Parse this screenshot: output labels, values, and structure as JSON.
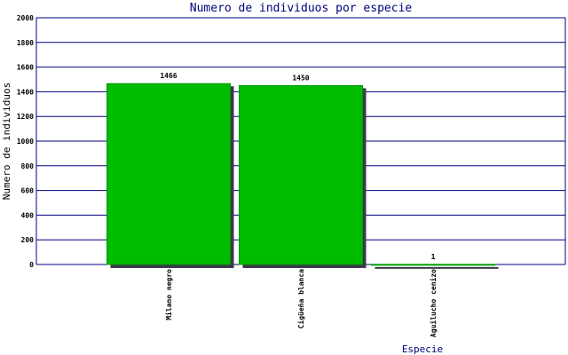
{
  "chart_data": {
    "type": "bar",
    "title": "Numero de individuos por especie",
    "x_label": "Especie",
    "y_label": "Numero de individuos",
    "categories": [
      "Milano negro",
      "Cigüeña blanca",
      "Aguilucho cenizo"
    ],
    "values": [
      1466,
      1450,
      1
    ],
    "color": "#00bb00",
    "ylim": [
      0,
      2000
    ],
    "yticks": [
      0,
      200,
      400,
      600,
      800,
      1000,
      1200,
      1400,
      1600,
      1800,
      2000
    ],
    "grid": true
  }
}
